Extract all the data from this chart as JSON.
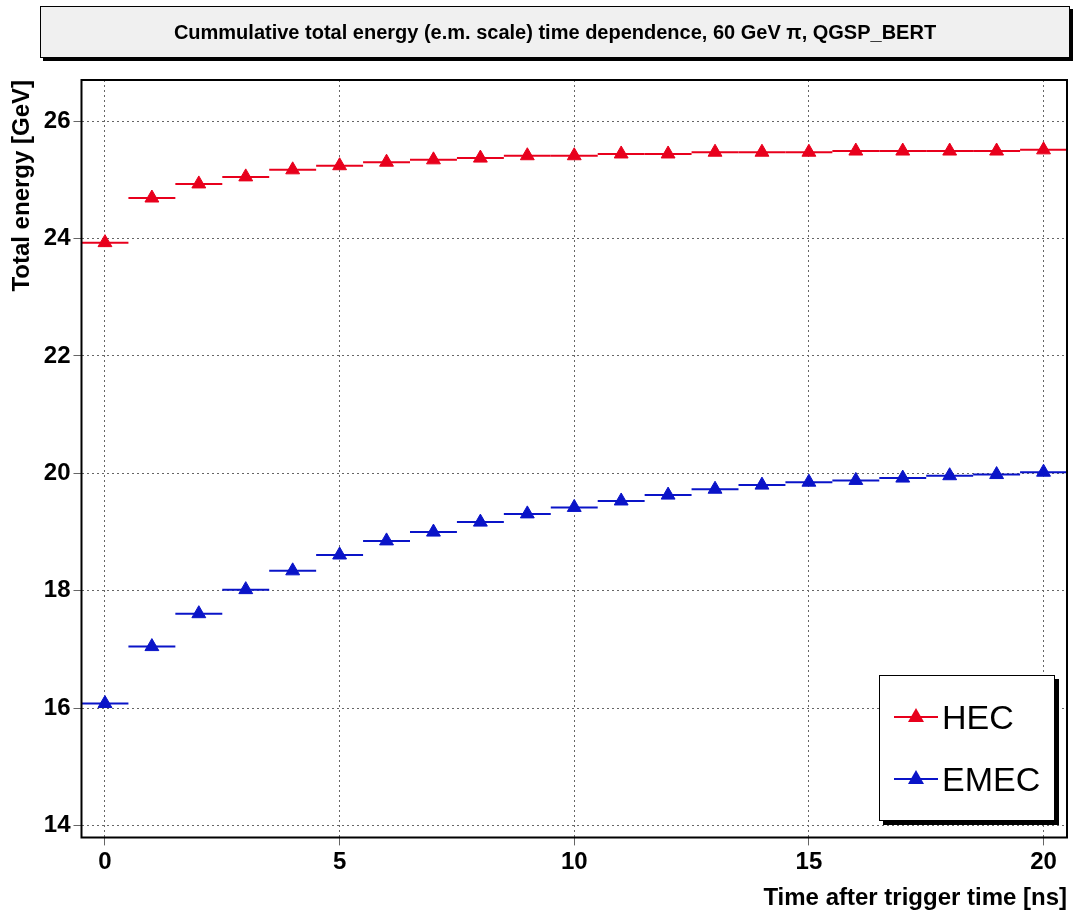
{
  "chart_data": {
    "type": "scatter",
    "title": "Cummulative total energy (e.m. scale) time dependence, 60 GeV π, QGSP_BERT",
    "xlabel": "Time after trigger time [ns]",
    "ylabel": "Total energy [GeV]",
    "x": [
      0,
      1,
      2,
      3,
      4,
      5,
      6,
      7,
      8,
      9,
      10,
      11,
      12,
      13,
      14,
      15,
      16,
      17,
      18,
      19,
      20
    ],
    "series": [
      {
        "name": "HEC",
        "color": "#e8001c",
        "values": [
          23.93,
          24.69,
          24.93,
          25.05,
          25.17,
          25.24,
          25.3,
          25.34,
          25.37,
          25.41,
          25.41,
          25.44,
          25.44,
          25.47,
          25.47,
          25.47,
          25.49,
          25.49,
          25.49,
          25.49,
          25.51
        ],
        "xerrors": [
          0.5,
          0.5,
          0.5,
          0.5,
          0.5,
          0.5,
          0.5,
          0.5,
          0.5,
          0.5,
          0.5,
          0.5,
          0.5,
          0.5,
          0.5,
          0.5,
          0.5,
          0.5,
          0.5,
          0.5,
          0.5
        ]
      },
      {
        "name": "EMEC",
        "color": "#0a14c8",
        "values": [
          16.08,
          17.05,
          17.61,
          18.02,
          18.34,
          18.61,
          18.85,
          19.0,
          19.17,
          19.31,
          19.42,
          19.53,
          19.63,
          19.73,
          19.8,
          19.85,
          19.88,
          19.92,
          19.96,
          19.98,
          20.02
        ],
        "xerrors": [
          0.5,
          0.5,
          0.5,
          0.5,
          0.5,
          0.5,
          0.5,
          0.5,
          0.5,
          0.5,
          0.5,
          0.5,
          0.5,
          0.5,
          0.5,
          0.5,
          0.5,
          0.5,
          0.5,
          0.5,
          0.5
        ]
      }
    ],
    "xlim": [
      -0.5,
      20.5
    ],
    "ylim": [
      13.8,
      26.7
    ],
    "xticks": [
      0,
      5,
      10,
      15,
      20
    ],
    "yticks": [
      14,
      16,
      18,
      20,
      22,
      24,
      26
    ],
    "grid": true,
    "legend": "bottom right",
    "marker": "triangle"
  }
}
